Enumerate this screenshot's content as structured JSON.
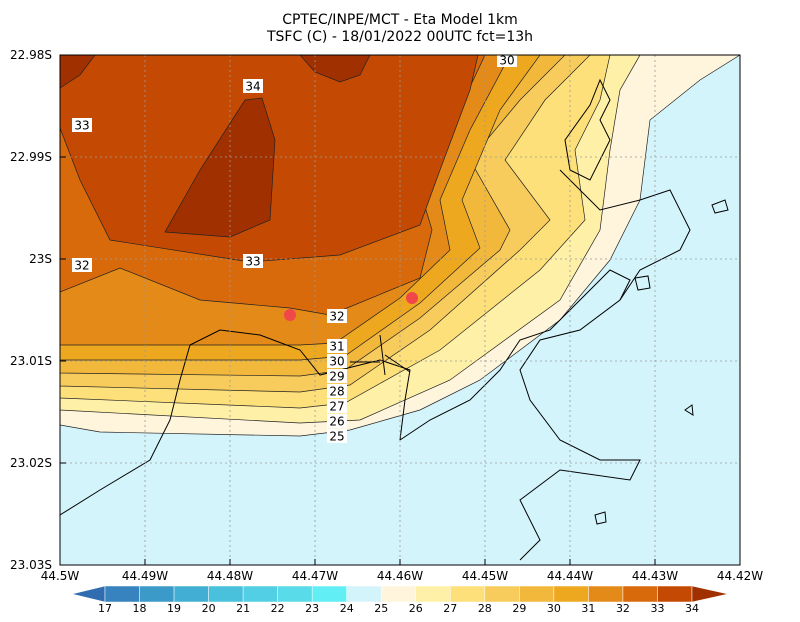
{
  "title": [
    "CPTEC/INPE/MCT -  Eta Model 1km",
    "TSFC (C) - 18/01/2022 00UTC fct=13h"
  ],
  "lat_labels": [
    "22.98S",
    "22.99S",
    "23S",
    "23.01S",
    "23.02S",
    "23.03S"
  ],
  "lon_labels": [
    "44.5W",
    "44.49W",
    "44.48W",
    "44.47W",
    "44.46W",
    "44.45W",
    "44.44W",
    "44.43W",
    "44.42W"
  ],
  "colorbar": {
    "levels": [
      17,
      18,
      19,
      20,
      21,
      22,
      23,
      24,
      25,
      26,
      27,
      28,
      29,
      30,
      31,
      32,
      33,
      34
    ],
    "colors": [
      "#2f6db0",
      "#3683c0",
      "#3c9ac9",
      "#42aed3",
      "#49c0dc",
      "#52cfe5",
      "#5adbe9",
      "#62eef5",
      "#d4f4fc",
      "#fff5dc",
      "#fff0a8",
      "#fde07a",
      "#f8cc5c",
      "#f2b83c",
      "#eea820",
      "#e48a18",
      "#d96a0c",
      "#c44a04",
      "#a03000"
    ]
  },
  "contour_labels": [
    34,
    33,
    33,
    32,
    32,
    31,
    30,
    29,
    28,
    27,
    26,
    25,
    30
  ]
}
